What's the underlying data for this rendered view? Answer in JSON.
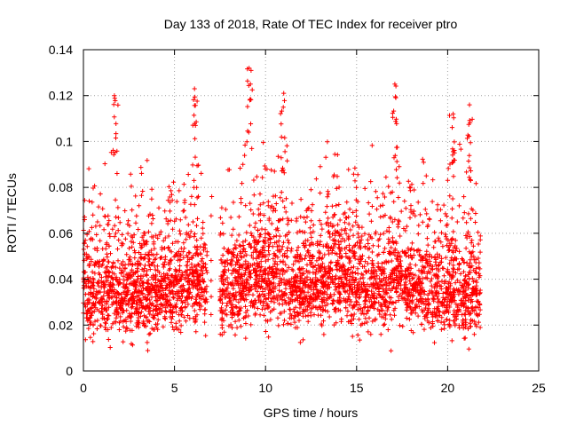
{
  "chart_data": {
    "type": "scatter",
    "title": "Day 133 of 2018, Rate Of TEC Index for receiver ptro",
    "xlabel": "GPS time / hours",
    "ylabel": "ROTI / TECUs",
    "xlim": [
      0,
      25
    ],
    "ylim": [
      0,
      0.14
    ],
    "x_ticks": [
      "0",
      "5",
      "10",
      "15",
      "20",
      "25"
    ],
    "y_ticks": [
      "0",
      "0.02",
      "0.04",
      "0.06",
      "0.08",
      "0.1",
      "0.12",
      "0.14"
    ],
    "grid": true,
    "marker": "+",
    "color": "#ff0000",
    "data_extent_hours": [
      0,
      21.8
    ],
    "data_gaps_hours": [
      [
        6.8,
        7.0
      ],
      [
        7.05,
        7.5
      ]
    ],
    "highlights": [
      {
        "x": 1.7,
        "y": 0.12
      },
      {
        "x": 6.1,
        "y": 0.123
      },
      {
        "x": 9.1,
        "y": 0.132
      },
      {
        "x": 11.0,
        "y": 0.121
      },
      {
        "x": 17.1,
        "y": 0.125
      },
      {
        "x": 20.3,
        "y": 0.112
      },
      {
        "x": 21.2,
        "y": 0.116
      }
    ]
  }
}
